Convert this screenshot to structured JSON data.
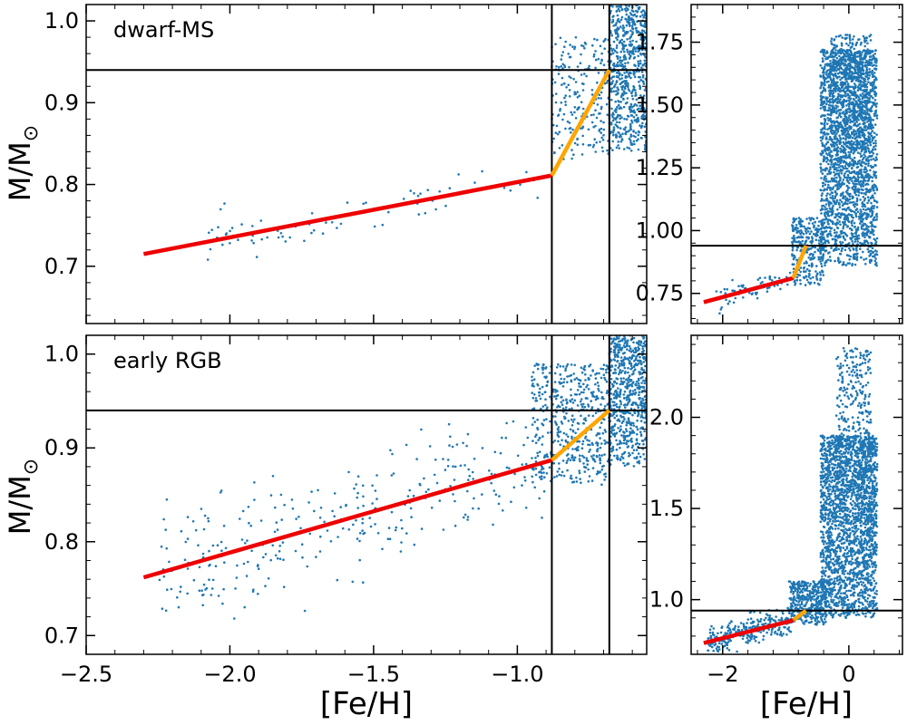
{
  "figure": {
    "xlabel_left": "[Fe/H]",
    "xlabel_right": "[Fe/H]",
    "ylabel": "M/M",
    "ylabel_sub": "⊙",
    "colors": {
      "points": "#1f77b4",
      "red_fit": "#ee0000",
      "orange_fit": "#ffa500",
      "lines": "#000000"
    }
  },
  "chart_data": [
    {
      "id": "dwarf-ms-zoom",
      "type": "scatter",
      "label": "dwarf-MS",
      "xlim": [
        -2.5,
        -0.55
      ],
      "ylim": [
        0.63,
        1.02
      ],
      "xticks": [
        -2.5,
        -2.0,
        -1.5,
        -1.0
      ],
      "xtick_labels": [
        "",
        "",
        "",
        ""
      ],
      "yticks": [
        0.7,
        0.8,
        0.9,
        1.0
      ],
      "ytick_labels": [
        "0.7",
        "0.8",
        "0.9",
        "1.0"
      ],
      "hline": 0.94,
      "vlines": [
        -0.88,
        -0.68
      ],
      "fit_segments": [
        {
          "name": "red",
          "points": [
            [
              -2.3,
              0.715
            ],
            [
              -0.88,
              0.811
            ]
          ]
        },
        {
          "name": "orange",
          "points": [
            [
              -0.88,
              0.811
            ],
            [
              -0.68,
              0.94
            ]
          ]
        }
      ],
      "scatter_regions": [
        {
          "count": 80,
          "x": [
            -2.1,
            -0.92
          ],
          "line": [
            [
              -2.3,
              0.715
            ],
            [
              -0.88,
              0.811
            ]
          ],
          "spread": 0.012,
          "seed": 11
        },
        {
          "count": 220,
          "x": [
            -0.88,
            -0.68
          ],
          "y": [
            0.83,
            0.98
          ],
          "seed": 12
        },
        {
          "count": 650,
          "x": [
            -0.68,
            -0.55
          ],
          "y": [
            0.84,
            1.02
          ],
          "seed": 13
        }
      ]
    },
    {
      "id": "dwarf-ms-full",
      "type": "scatter",
      "xlim": [
        -2.5,
        0.85
      ],
      "ylim": [
        0.63,
        1.9
      ],
      "xticks": [
        -2.0,
        0.0
      ],
      "xtick_labels": [
        "",
        ""
      ],
      "yticks": [
        0.75,
        1.0,
        1.25,
        1.5,
        1.75
      ],
      "ytick_labels": [
        "0.75",
        "1.00",
        "1.25",
        "1.50",
        "1.75"
      ],
      "hline": 0.94,
      "fit_segments": [
        {
          "name": "red",
          "points": [
            [
              -2.3,
              0.715
            ],
            [
              -0.88,
              0.811
            ]
          ]
        },
        {
          "name": "orange",
          "points": [
            [
              -0.88,
              0.811
            ],
            [
              -0.68,
              0.94
            ]
          ]
        }
      ],
      "scatter_regions": [
        {
          "count": 80,
          "x": [
            -2.1,
            -0.92
          ],
          "line": [
            [
              -2.3,
              0.715
            ],
            [
              -0.88,
              0.811
            ]
          ],
          "spread": 0.02,
          "seed": 21
        },
        {
          "count": 300,
          "x": [
            -0.9,
            -0.4
          ],
          "y": [
            0.78,
            1.05
          ],
          "seed": 22
        },
        {
          "count": 2200,
          "x": [
            -0.45,
            0.45
          ],
          "y": [
            0.86,
            1.72
          ],
          "seed": 23
        },
        {
          "count": 500,
          "x": [
            -0.3,
            0.35
          ],
          "y": [
            1.2,
            1.78
          ],
          "seed": 24
        }
      ]
    },
    {
      "id": "early-rgb-zoom",
      "type": "scatter",
      "label": "early RGB",
      "xlim": [
        -2.5,
        -0.55
      ],
      "ylim": [
        0.68,
        1.02
      ],
      "xticks": [
        -2.5,
        -2.0,
        -1.5,
        -1.0
      ],
      "xtick_labels": [
        "−2.5",
        "−2.0",
        "−1.5",
        "−1.0"
      ],
      "yticks": [
        0.7,
        0.8,
        0.9,
        1.0
      ],
      "ytick_labels": [
        "0.7",
        "0.8",
        "0.9",
        "1.0"
      ],
      "hline": 0.94,
      "vlines": [
        -0.88,
        -0.68
      ],
      "fit_segments": [
        {
          "name": "red",
          "points": [
            [
              -2.3,
              0.762
            ],
            [
              -0.88,
              0.887
            ]
          ]
        },
        {
          "name": "orange",
          "points": [
            [
              -0.88,
              0.887
            ],
            [
              -0.68,
              0.94
            ]
          ]
        }
      ],
      "scatter_regions": [
        {
          "count": 320,
          "x": [
            -2.25,
            -0.9
          ],
          "line": [
            [
              -2.3,
              0.762
            ],
            [
              -0.88,
              0.887
            ]
          ],
          "spread": 0.032,
          "seed": 31
        },
        {
          "count": 500,
          "x": [
            -0.95,
            -0.68
          ],
          "y": [
            0.86,
            0.99
          ],
          "seed": 32
        },
        {
          "count": 650,
          "x": [
            -0.68,
            -0.55
          ],
          "y": [
            0.88,
            1.02
          ],
          "seed": 33
        }
      ]
    },
    {
      "id": "early-rgb-full",
      "type": "scatter",
      "xlim": [
        -2.5,
        0.85
      ],
      "ylim": [
        0.7,
        2.45
      ],
      "xticks": [
        -2.0,
        0.0
      ],
      "xtick_labels": [
        "−2",
        "0"
      ],
      "yticks": [
        1.0,
        1.5,
        2.0
      ],
      "ytick_labels": [
        "1.0",
        "1.5",
        "2.0"
      ],
      "hline": 0.94,
      "fit_segments": [
        {
          "name": "red",
          "points": [
            [
              -2.3,
              0.762
            ],
            [
              -0.88,
              0.887
            ]
          ]
        },
        {
          "name": "orange",
          "points": [
            [
              -0.88,
              0.887
            ],
            [
              -0.68,
              0.94
            ]
          ]
        }
      ],
      "scatter_regions": [
        {
          "count": 280,
          "x": [
            -2.25,
            -0.9
          ],
          "line": [
            [
              -2.3,
              0.762
            ],
            [
              -0.88,
              0.887
            ]
          ],
          "spread": 0.04,
          "seed": 41
        },
        {
          "count": 400,
          "x": [
            -0.95,
            -0.35
          ],
          "y": [
            0.86,
            1.1
          ],
          "seed": 42
        },
        {
          "count": 2300,
          "x": [
            -0.45,
            0.45
          ],
          "y": [
            0.9,
            1.9
          ],
          "seed": 43
        },
        {
          "count": 300,
          "x": [
            -0.2,
            0.35
          ],
          "y": [
            1.6,
            2.38
          ],
          "seed": 44
        }
      ]
    }
  ]
}
